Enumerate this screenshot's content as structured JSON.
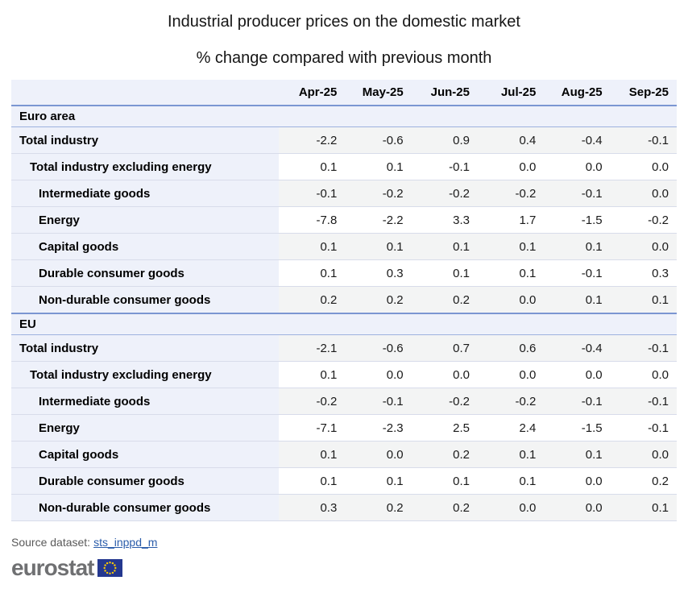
{
  "header": {
    "title": "Industrial producer prices on the domestic market",
    "subtitle": "% change compared with previous month"
  },
  "table": {
    "columns": [
      "Apr-25",
      "May-25",
      "Jun-25",
      "Jul-25",
      "Aug-25",
      "Sep-25"
    ],
    "sections": [
      {
        "label": "Euro area",
        "rows": [
          {
            "label": "Total industry",
            "indent": 0,
            "values": [
              "-2.2",
              "-0.6",
              "0.9",
              "0.4",
              "-0.4",
              "-0.1"
            ]
          },
          {
            "label": "Total industry excluding energy",
            "indent": 1,
            "values": [
              "0.1",
              "0.1",
              "-0.1",
              "0.0",
              "0.0",
              "0.0"
            ]
          },
          {
            "label": "Intermediate goods",
            "indent": 2,
            "values": [
              "-0.1",
              "-0.2",
              "-0.2",
              "-0.2",
              "-0.1",
              "0.0"
            ]
          },
          {
            "label": "Energy",
            "indent": 2,
            "values": [
              "-7.8",
              "-2.2",
              "3.3",
              "1.7",
              "-1.5",
              "-0.2"
            ]
          },
          {
            "label": "Capital goods",
            "indent": 2,
            "values": [
              "0.1",
              "0.1",
              "0.1",
              "0.1",
              "0.1",
              "0.0"
            ]
          },
          {
            "label": "Durable consumer goods",
            "indent": 2,
            "values": [
              "0.1",
              "0.3",
              "0.1",
              "0.1",
              "-0.1",
              "0.3"
            ]
          },
          {
            "label": "Non-durable consumer goods",
            "indent": 2,
            "values": [
              "0.2",
              "0.2",
              "0.2",
              "0.0",
              "0.1",
              "0.1"
            ]
          }
        ]
      },
      {
        "label": "EU",
        "rows": [
          {
            "label": "Total industry",
            "indent": 0,
            "values": [
              "-2.1",
              "-0.6",
              "0.7",
              "0.6",
              "-0.4",
              "-0.1"
            ]
          },
          {
            "label": "Total industry excluding energy",
            "indent": 1,
            "values": [
              "0.1",
              "0.0",
              "0.0",
              "0.0",
              "0.0",
              "0.0"
            ]
          },
          {
            "label": "Intermediate goods",
            "indent": 2,
            "values": [
              "-0.2",
              "-0.1",
              "-0.2",
              "-0.2",
              "-0.1",
              "-0.1"
            ]
          },
          {
            "label": "Energy",
            "indent": 2,
            "values": [
              "-7.1",
              "-2.3",
              "2.5",
              "2.4",
              "-1.5",
              "-0.1"
            ]
          },
          {
            "label": "Capital goods",
            "indent": 2,
            "values": [
              "0.1",
              "0.0",
              "0.2",
              "0.1",
              "0.1",
              "0.0"
            ]
          },
          {
            "label": "Durable consumer goods",
            "indent": 2,
            "values": [
              "0.1",
              "0.1",
              "0.1",
              "0.1",
              "0.0",
              "0.2"
            ]
          },
          {
            "label": "Non-durable consumer goods",
            "indent": 2,
            "values": [
              "0.3",
              "0.2",
              "0.2",
              "0.0",
              "0.0",
              "0.1"
            ]
          }
        ]
      }
    ]
  },
  "chart_data": {
    "type": "table",
    "title": "Industrial producer prices on the domestic market",
    "subtitle": "% change compared with previous month",
    "columns": [
      "Apr-25",
      "May-25",
      "Jun-25",
      "Jul-25",
      "Aug-25",
      "Sep-25"
    ],
    "sections": [
      {
        "name": "Euro area",
        "series": [
          {
            "name": "Total industry",
            "values": [
              -2.2,
              -0.6,
              0.9,
              0.4,
              -0.4,
              -0.1
            ]
          },
          {
            "name": "Total industry excluding energy",
            "values": [
              0.1,
              0.1,
              -0.1,
              0.0,
              0.0,
              0.0
            ]
          },
          {
            "name": "Intermediate goods",
            "values": [
              -0.1,
              -0.2,
              -0.2,
              -0.2,
              -0.1,
              0.0
            ]
          },
          {
            "name": "Energy",
            "values": [
              -7.8,
              -2.2,
              3.3,
              1.7,
              -1.5,
              -0.2
            ]
          },
          {
            "name": "Capital goods",
            "values": [
              0.1,
              0.1,
              0.1,
              0.1,
              0.1,
              0.0
            ]
          },
          {
            "name": "Durable consumer goods",
            "values": [
              0.1,
              0.3,
              0.1,
              0.1,
              -0.1,
              0.3
            ]
          },
          {
            "name": "Non-durable consumer goods",
            "values": [
              0.2,
              0.2,
              0.2,
              0.0,
              0.1,
              0.1
            ]
          }
        ]
      },
      {
        "name": "EU",
        "series": [
          {
            "name": "Total industry",
            "values": [
              -2.1,
              -0.6,
              0.7,
              0.6,
              -0.4,
              -0.1
            ]
          },
          {
            "name": "Total industry excluding energy",
            "values": [
              0.1,
              0.0,
              0.0,
              0.0,
              0.0,
              0.0
            ]
          },
          {
            "name": "Intermediate goods",
            "values": [
              -0.2,
              -0.1,
              -0.2,
              -0.2,
              -0.1,
              -0.1
            ]
          },
          {
            "name": "Energy",
            "values": [
              -7.1,
              -2.3,
              2.5,
              2.4,
              -1.5,
              -0.1
            ]
          },
          {
            "name": "Capital goods",
            "values": [
              0.1,
              0.0,
              0.2,
              0.1,
              0.1,
              0.0
            ]
          },
          {
            "name": "Durable consumer goods",
            "values": [
              0.1,
              0.1,
              0.1,
              0.1,
              0.0,
              0.2
            ]
          },
          {
            "name": "Non-durable consumer goods",
            "values": [
              0.3,
              0.2,
              0.2,
              0.0,
              0.0,
              0.1
            ]
          }
        ]
      }
    ]
  },
  "footer": {
    "source_label": "Source dataset:",
    "source_link": "sts_inppd_m",
    "logo_text": "eurostat"
  },
  "colors": {
    "accent_border": "#7b96d2",
    "section_border": "#9db1de",
    "row_border": "#d8dcea",
    "label_bg": "#eef1fa",
    "cell_gray": "#f3f4f4",
    "link": "#2a5caa",
    "flag_blue": "#24388f",
    "star_yellow": "#ffcc00"
  }
}
